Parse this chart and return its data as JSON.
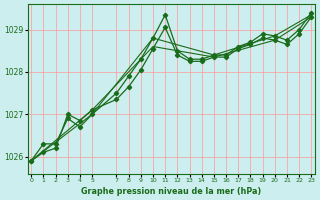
{
  "title": "Graphe pression niveau de la mer (hPa)",
  "bg_color": "#cceeee",
  "grid_color": "#ff9999",
  "line_color": "#1a6b1a",
  "series": [
    {
      "x": [
        0,
        1,
        2,
        3,
        4,
        5,
        7,
        8,
        9,
        10,
        11,
        12,
        13,
        14,
        15,
        16,
        17,
        18,
        19,
        20,
        21,
        22,
        23
      ],
      "y": [
        1025.9,
        1026.3,
        1026.3,
        1026.9,
        1026.7,
        1027.0,
        1027.5,
        1027.9,
        1028.3,
        1028.8,
        1029.35,
        1028.5,
        1028.3,
        1028.3,
        1028.4,
        1028.4,
        1028.6,
        1028.7,
        1028.9,
        1028.85,
        1028.75,
        1029.0,
        1029.4
      ]
    },
    {
      "x": [
        0,
        1,
        2,
        3,
        4,
        5,
        7,
        8,
        9,
        10,
        11,
        12,
        13,
        14,
        15,
        16,
        17,
        18,
        19,
        20,
        21,
        22,
        23
      ],
      "y": [
        1025.9,
        1026.1,
        1026.2,
        1027.0,
        1026.85,
        1027.1,
        1027.35,
        1027.65,
        1028.05,
        1028.55,
        1029.05,
        1028.4,
        1028.25,
        1028.25,
        1028.35,
        1028.35,
        1028.55,
        1028.65,
        1028.8,
        1028.75,
        1028.65,
        1028.9,
        1029.3
      ]
    },
    {
      "x": [
        0,
        5,
        10,
        15,
        20,
        23
      ],
      "y": [
        1025.9,
        1027.0,
        1028.8,
        1028.4,
        1028.85,
        1029.35
      ]
    },
    {
      "x": [
        0,
        5,
        10,
        15,
        20,
        23
      ],
      "y": [
        1025.9,
        1027.1,
        1028.6,
        1028.35,
        1028.75,
        1029.3
      ]
    }
  ],
  "xlim": [
    -0.3,
    23.3
  ],
  "ylim": [
    1025.6,
    1029.6
  ],
  "yticks": [
    1026,
    1027,
    1028,
    1029
  ],
  "xticks": [
    0,
    1,
    2,
    3,
    4,
    5,
    7,
    8,
    9,
    10,
    11,
    12,
    13,
    14,
    15,
    16,
    17,
    18,
    19,
    20,
    21,
    22,
    23
  ],
  "xtick_labels": [
    "0",
    "1",
    "2",
    "3",
    "4",
    "5",
    "7",
    "8",
    "9",
    "10",
    "11",
    "12",
    "13",
    "14",
    "15",
    "16",
    "17",
    "18",
    "19",
    "20",
    "21",
    "22",
    "23"
  ]
}
